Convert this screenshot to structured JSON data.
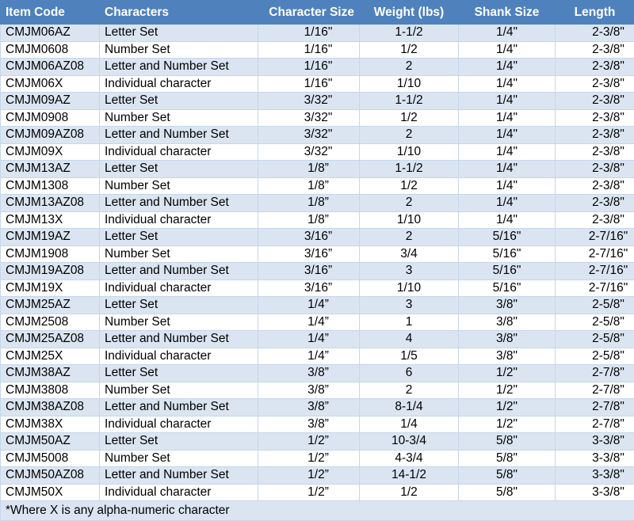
{
  "table": {
    "headers": [
      "Item Code",
      "Characters",
      "Character Size",
      "Weight (lbs)",
      "Shank Size",
      "Length"
    ],
    "rows": [
      [
        "CMJM06AZ",
        "Letter Set",
        "1/16\"",
        "1-1/2",
        "1/4\"",
        "2-3/8\""
      ],
      [
        "CMJM0608",
        "Number Set",
        "1/16\"",
        "1/2",
        "1/4\"",
        "2-3/8\""
      ],
      [
        "CMJM06AZ08",
        "Letter and Number Set",
        "1/16\"",
        "2",
        "1/4\"",
        "2-3/8\""
      ],
      [
        "CMJM06X",
        "Individual character",
        "1/16\"",
        "1/10",
        "1/4\"",
        "2-3/8\""
      ],
      [
        "CMJM09AZ",
        "Letter Set",
        "3/32\"",
        "1-1/2",
        "1/4\"",
        "2-3/8\""
      ],
      [
        "CMJM0908",
        "Number Set",
        "3/32\"",
        "1/2",
        "1/4\"",
        "2-3/8\""
      ],
      [
        "CMJM09AZ08",
        "Letter and Number Set",
        "3/32\"",
        "2",
        "1/4\"",
        "2-3/8\""
      ],
      [
        "CMJM09X",
        "Individual character",
        "3/32\"",
        "1/10",
        "1/4\"",
        "2-3/8\""
      ],
      [
        "CMJM13AZ",
        "Letter Set",
        "1/8”",
        "1-1/2",
        "1/4\"",
        "2-3/8\""
      ],
      [
        "CMJM1308",
        "Number Set",
        "1/8”",
        "1/2",
        "1/4\"",
        "2-3/8\""
      ],
      [
        "CMJM13AZ08",
        "Letter and Number Set",
        "1/8”",
        "2",
        "1/4\"",
        "2-3/8\""
      ],
      [
        "CMJM13X",
        "Individual character",
        "1/8”",
        "1/10",
        "1/4\"",
        "2-3/8\""
      ],
      [
        "CMJM19AZ",
        "Letter Set",
        "3/16”",
        "2",
        "5/16\"",
        "2-7/16\""
      ],
      [
        "CMJM1908",
        "Number Set",
        "3/16”",
        "3/4",
        "5/16\"",
        "2-7/16\""
      ],
      [
        "CMJM19AZ08",
        "Letter and Number Set",
        "3/16”",
        "3",
        "5/16\"",
        "2-7/16\""
      ],
      [
        "CMJM19X",
        "Individual character",
        "3/16”",
        "1/10",
        "5/16\"",
        "2-7/16\""
      ],
      [
        "CMJM25AZ",
        "Letter Set",
        "1/4”",
        "3",
        "3/8\"",
        "2-5/8\""
      ],
      [
        "CMJM2508",
        "Number Set",
        "1/4”",
        "1",
        "3/8\"",
        "2-5/8\""
      ],
      [
        "CMJM25AZ08",
        "Letter and Number Set",
        "1/4”",
        "4",
        "3/8\"",
        "2-5/8\""
      ],
      [
        "CMJM25X",
        "Individual character",
        "1/4”",
        "1/5",
        "3/8\"",
        "2-5/8\""
      ],
      [
        "CMJM38AZ",
        "Letter Set",
        "3/8”",
        "6",
        "1/2\"",
        "2-7/8\""
      ],
      [
        "CMJM3808",
        "Number Set",
        "3/8”",
        "2",
        "1/2\"",
        "2-7/8\""
      ],
      [
        "CMJM38AZ08",
        "Letter and Number Set",
        "3/8”",
        "8-1/4",
        "1/2\"",
        "2-7/8\""
      ],
      [
        "CMJM38X",
        "Individual character",
        "3/8”",
        "1/4",
        "1/2\"",
        "2-7/8\""
      ],
      [
        "CMJM50AZ",
        "Letter Set",
        "1/2”",
        "10-3/4",
        "5/8\"",
        "3-3/8\""
      ],
      [
        "CMJM5008",
        "Number Set",
        "1/2”",
        "4-3/4",
        "5/8\"",
        "3-3/8\""
      ],
      [
        "CMJM50AZ08",
        "Letter and Number Set",
        "1/2”",
        "14-1/2",
        "5/8\"",
        "3-3/8\""
      ],
      [
        "CMJM50X",
        "Individual character",
        "1/2”",
        "1/2",
        "5/8\"",
        "3-3/8\""
      ]
    ],
    "footnote": "*Where X is any alpha-numeric character"
  }
}
